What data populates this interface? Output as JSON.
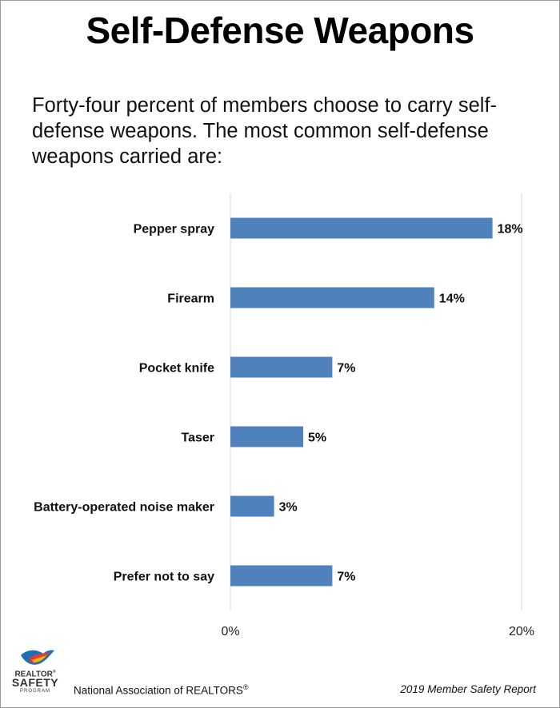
{
  "title": "Self-Defense Weapons",
  "subtitle": "Forty-four percent of members choose to carry self-defense weapons. The most common self-defense weapons carried are:",
  "chart_data": {
    "type": "bar",
    "orientation": "horizontal",
    "categories": [
      "Pepper spray",
      "Firearm",
      "Pocket knife",
      "Taser",
      "Battery-operated noise maker",
      "Prefer not to say"
    ],
    "values": [
      18,
      14,
      7,
      5,
      3,
      7
    ],
    "data_labels": [
      "18%",
      "14%",
      "7%",
      "5%",
      "3%",
      "7%"
    ],
    "xlim": [
      0,
      20
    ],
    "x_ticks": [
      0,
      20
    ],
    "x_tick_labels": [
      "0%",
      "20%"
    ],
    "grid": true,
    "bar_color": "#4f81bd"
  },
  "footer": {
    "organization": "National Association of REALTORS",
    "registered_mark": "®",
    "report": "2019 Member Safety Report"
  },
  "logo": {
    "line1": "REALTOR",
    "line1_mark": "®",
    "line2": "SAFETY",
    "line3": "PROGRAM"
  }
}
